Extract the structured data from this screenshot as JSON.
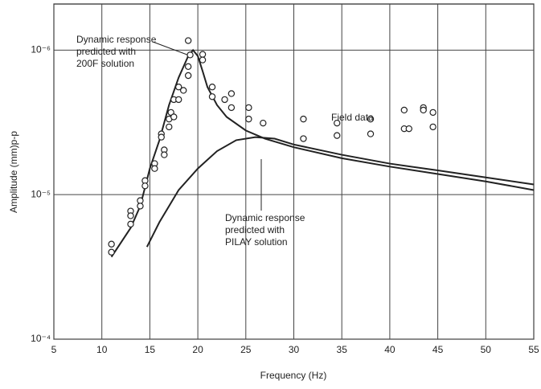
{
  "chart_data": {
    "type": "line",
    "xlabel": "Frequency (Hz)",
    "ylabel": "Amplitude (mm)p-p",
    "xlim": [
      5,
      55
    ],
    "xticks": [
      5,
      10,
      15,
      20,
      25,
      30,
      35,
      40,
      45,
      50,
      55
    ],
    "ylim": [
      0.0001,
      4.8e-07
    ],
    "yticks": [
      {
        "value": 1e-06,
        "label": "10⁻⁶"
      },
      {
        "value": 1e-05,
        "label": "10⁻⁵"
      },
      {
        "value": 0.0001,
        "label": "10⁻⁴"
      }
    ],
    "ylog": true,
    "grid": true,
    "series": [
      {
        "mode": "line",
        "color": "#222222",
        "annotation": [
          "Dynamic response",
          "predicted with",
          "200F solution"
        ],
        "x": [
          11,
          13,
          14,
          15,
          16,
          17,
          18,
          19,
          19.5,
          20,
          20.5,
          21,
          22,
          23,
          25,
          27,
          30,
          35,
          40,
          45,
          50,
          55
        ],
        "values": [
          2.7e-05,
          1.7e-05,
          1.2e-05,
          6.6e-06,
          4.2e-06,
          2.4e-06,
          1.55e-06,
          1.1e-06,
          1e-06,
          1.1e-06,
          1.4e-06,
          1.8e-06,
          2.4e-06,
          2.9e-06,
          3.6e-06,
          4.1e-06,
          4.7e-06,
          5.6e-06,
          6.4e-06,
          7.2e-06,
          8.1e-06,
          9.3e-06
        ]
      },
      {
        "mode": "line",
        "color": "#222222",
        "annotation": [
          "Dynamic response",
          "predicted with",
          "PILAY solution"
        ],
        "x": [
          14.7,
          16,
          18,
          20,
          22,
          24,
          26,
          28,
          30,
          35,
          40,
          45,
          50,
          55
        ],
        "values": [
          2.3e-05,
          1.55e-05,
          9.3e-06,
          6.6e-06,
          5e-06,
          4.2e-06,
          4e-06,
          4.1e-06,
          4.5e-06,
          5.3e-06,
          6.1e-06,
          6.8e-06,
          7.6e-06,
          8.5e-06
        ]
      },
      {
        "mode": "markers",
        "name": "Field data",
        "color": "#222222",
        "x": [
          11,
          11,
          13,
          13,
          13,
          14,
          14,
          14.5,
          14.5,
          15.5,
          15.5,
          16.2,
          16.2,
          16.5,
          16.5,
          17,
          17,
          17.2,
          17.5,
          17.5,
          18,
          18,
          18.5,
          19,
          19,
          19,
          19.2,
          20.5,
          20.5,
          21.5,
          21.5,
          22.8,
          23.5,
          23.5,
          25.3,
          25.3,
          26.8,
          31,
          31,
          34.5,
          34.5,
          38,
          38,
          41.5,
          41.5,
          42,
          43.5,
          43.5,
          44.5,
          44.5
        ],
        "values": [
          2.2e-05,
          2.5e-05,
          1.3e-05,
          1.4e-05,
          1.6e-05,
          1.1e-05,
          1.2e-05,
          8e-06,
          8.7e-06,
          6.1e-06,
          6.6e-06,
          3.8e-06,
          4e-06,
          4.9e-06,
          5.3e-06,
          3e-06,
          3.4e-06,
          2.7e-06,
          2.2e-06,
          2.9e-06,
          1.8e-06,
          2.2e-06,
          1.9e-06,
          1.3e-06,
          1.5e-06,
          8.6e-07,
          1.08e-06,
          1.07e-06,
          1.17e-06,
          1.8e-06,
          2.1e-06,
          2.2e-06,
          2e-06,
          2.5e-06,
          2.5e-06,
          3e-06,
          3.2e-06,
          3e-06,
          4.1e-06,
          3.2e-06,
          3.9e-06,
          3e-06,
          3.8e-06,
          2.6e-06,
          3.5e-06,
          3.5e-06,
          2.5e-06,
          2.6e-06,
          2.7e-06,
          3.4e-06
        ]
      }
    ]
  }
}
